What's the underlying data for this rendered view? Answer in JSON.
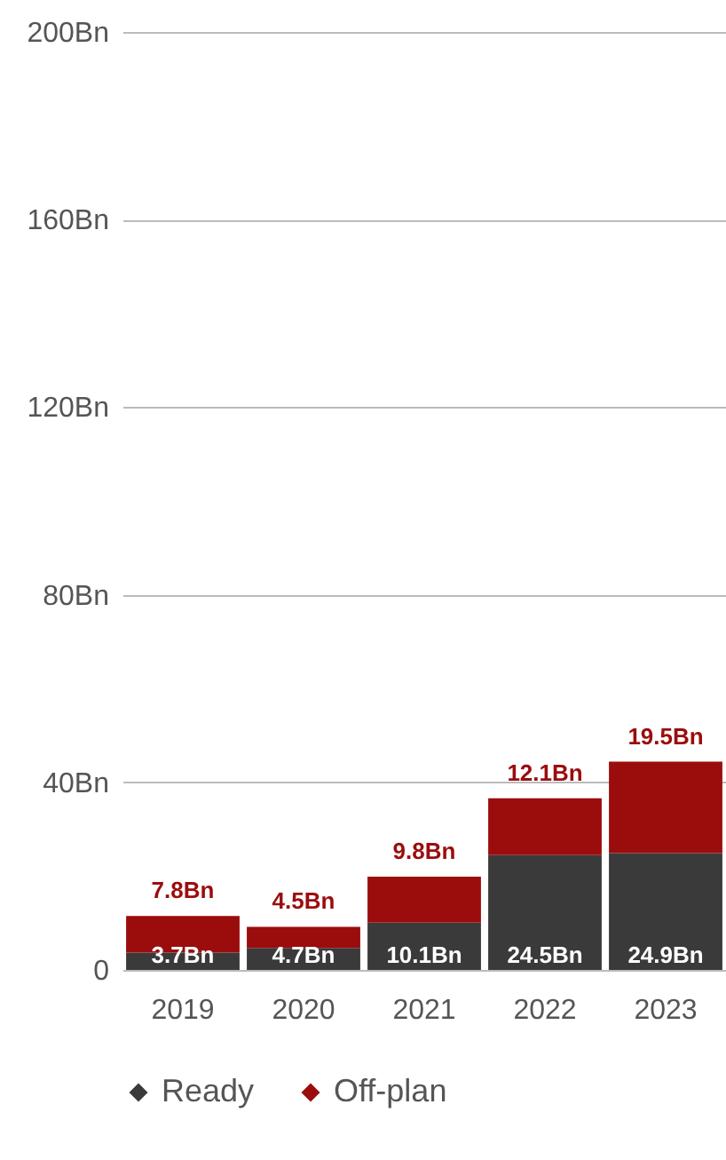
{
  "chart_data": {
    "type": "bar",
    "stacked": true,
    "categories": [
      "2019",
      "2020",
      "2021",
      "2022",
      "2023"
    ],
    "series": [
      {
        "name": "Ready",
        "color": "#3a3a3a",
        "values": [
          3.7,
          4.7,
          10.1,
          24.5,
          24.9
        ]
      },
      {
        "name": "Off-plan",
        "color": "#9b0d0d",
        "values": [
          7.8,
          4.5,
          9.8,
          12.1,
          19.5
        ]
      }
    ],
    "value_labels": [
      [
        "3.7Bn",
        "4.7Bn",
        "10.1Bn",
        "24.5Bn",
        "24.9Bn"
      ],
      [
        "7.8Bn",
        "4.5Bn",
        "9.8Bn",
        "12.1Bn",
        "19.5Bn"
      ]
    ],
    "ylim": [
      0,
      200
    ],
    "yticks": [
      {
        "value": 0,
        "label": "0"
      },
      {
        "value": 40,
        "label": "40Bn"
      },
      {
        "value": 80,
        "label": "80Bn"
      },
      {
        "value": 120,
        "label": "120Bn"
      },
      {
        "value": 160,
        "label": "160Bn"
      },
      {
        "value": 200,
        "label": "200Bn"
      }
    ],
    "grid": "y",
    "legend": "bottom"
  }
}
